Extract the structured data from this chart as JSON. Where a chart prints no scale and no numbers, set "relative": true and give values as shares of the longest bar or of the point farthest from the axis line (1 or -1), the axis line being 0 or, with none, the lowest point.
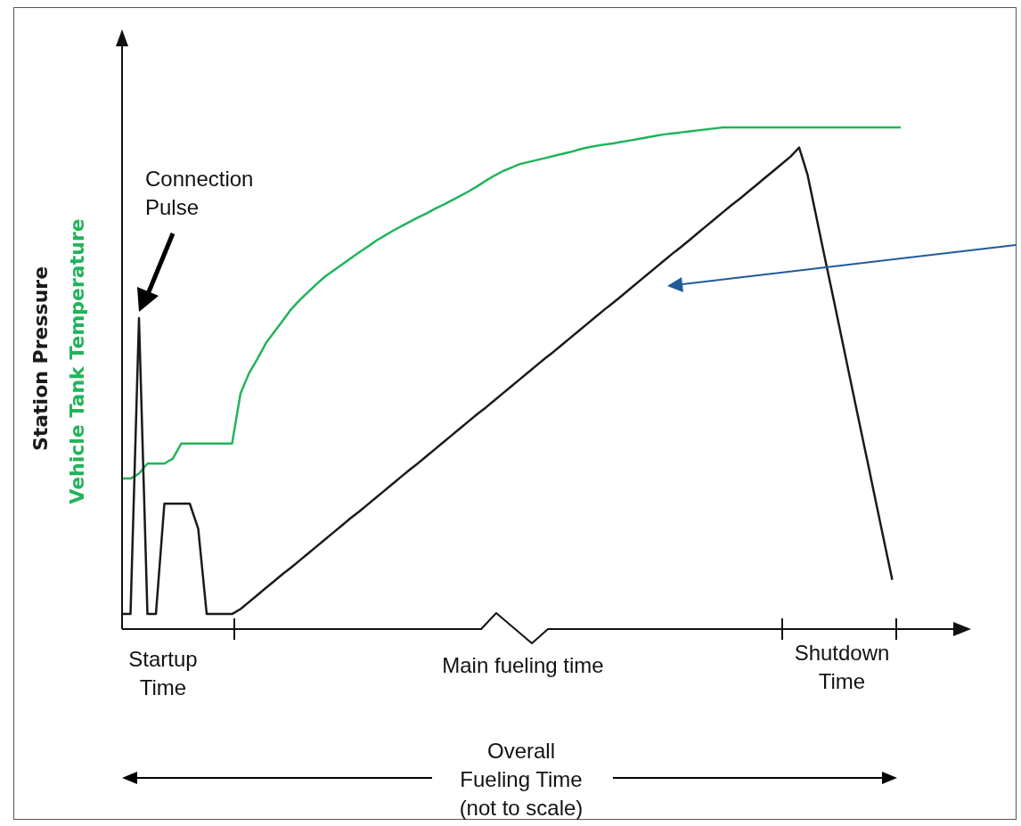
{
  "chart_data": {
    "type": "line",
    "relative": true,
    "legend": false,
    "marker": "none",
    "line_style": "solid",
    "categories": [
      null,
      null,
      null,
      null,
      null,
      null,
      null,
      null,
      null,
      null,
      null,
      null,
      null,
      null,
      null,
      null,
      null,
      null,
      null,
      null,
      null,
      null,
      null,
      null,
      null,
      null,
      null,
      null,
      null,
      null,
      null,
      null,
      null,
      null,
      null,
      null,
      null,
      null,
      null,
      null,
      null,
      null,
      null,
      null,
      null,
      null,
      null,
      null,
      null,
      null,
      null,
      null,
      null,
      null,
      null,
      null,
      null,
      null,
      null,
      null,
      null,
      null,
      null,
      null,
      null,
      null,
      null,
      null,
      null,
      null,
      null,
      null,
      null,
      null,
      null,
      null,
      null,
      null,
      null,
      null,
      null,
      null,
      null,
      null,
      null,
      null,
      null,
      null,
      null,
      null,
      null,
      null,
      null
    ],
    "series": [
      {
        "name": "Station Pressure",
        "color": "#1a1a1a",
        "values": [
          0.03,
          0.03,
          0.62,
          0.03,
          0.03,
          0.25,
          0.25,
          0.25,
          0.25,
          0.2,
          0.03,
          0.03,
          0.03,
          0.03,
          0.04,
          0.054,
          0.068,
          0.082,
          0.096,
          0.11,
          0.123,
          0.137,
          0.151,
          0.165,
          0.179,
          0.193,
          0.207,
          0.221,
          0.234,
          0.248,
          0.262,
          0.276,
          0.29,
          0.304,
          0.318,
          0.331,
          0.345,
          0.359,
          0.373,
          0.387,
          0.401,
          0.415,
          0.429,
          0.442,
          0.456,
          0.47,
          0.484,
          0.498,
          0.512,
          0.526,
          0.54,
          0.553,
          0.567,
          0.581,
          0.595,
          0.609,
          0.623,
          0.637,
          0.65,
          0.664,
          0.678,
          0.692,
          0.706,
          0.72,
          0.734,
          0.748,
          0.761,
          0.775,
          0.789,
          0.803,
          0.817,
          0.831,
          0.845,
          0.858,
          0.872,
          0.886,
          0.9,
          0.914,
          0.928,
          0.942,
          0.96,
          0.905,
          0.824,
          0.743,
          0.663,
          0.582,
          0.501,
          0.42,
          0.34,
          0.259,
          0.178,
          0.098,
          null
        ]
      },
      {
        "name": "Vehicle Tank Temperature",
        "color": "#21b45b",
        "values": [
          0.3,
          0.3,
          0.31,
          0.33,
          0.33,
          0.33,
          0.34,
          0.37,
          0.37,
          0.37,
          0.37,
          0.37,
          0.37,
          0.37,
          0.47,
          0.51,
          0.539,
          0.57,
          0.593,
          0.615,
          0.638,
          0.656,
          0.672,
          0.688,
          0.703,
          0.715,
          0.727,
          0.739,
          0.751,
          0.762,
          0.774,
          0.784,
          0.794,
          0.803,
          0.812,
          0.821,
          0.829,
          0.838,
          0.846,
          0.855,
          0.864,
          0.873,
          0.883,
          0.894,
          0.904,
          0.913,
          0.92,
          0.927,
          0.931,
          0.935,
          0.939,
          0.943,
          0.947,
          0.951,
          0.956,
          0.96,
          0.963,
          0.966,
          0.968,
          0.971,
          0.974,
          0.977,
          0.98,
          0.983,
          0.986,
          0.988,
          0.99,
          0.992,
          0.994,
          0.996,
          0.998,
          1,
          1,
          1,
          1,
          1,
          1,
          1,
          1,
          1,
          1,
          1,
          1,
          1,
          1,
          1,
          1,
          1,
          1,
          1,
          1,
          1,
          1
        ]
      }
    ],
    "annotations": [
      "Connection Pulse",
      "Startup Time",
      "Main fueling time",
      "Shutdown Time",
      "Overall Fueling Time (not to scale)"
    ]
  }
}
